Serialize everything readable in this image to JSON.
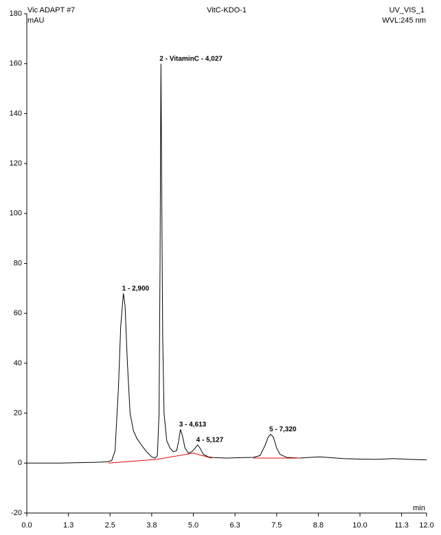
{
  "chart_data": {
    "type": "line",
    "header_left": "Vic  ADAPT #7",
    "title": "VitC-KDO-1",
    "header_right": "UV_VIS_1",
    "ylabel": "mAU",
    "subtitle": "WVL:245 nm",
    "xlabel": "min",
    "xlim": [
      0,
      12
    ],
    "ylim": [
      -20,
      180
    ],
    "xticks": [
      {
        "value": 0,
        "label": "0.0"
      },
      {
        "value": 1.25,
        "label": "1.3"
      },
      {
        "value": 2.5,
        "label": "2.5"
      },
      {
        "value": 3.75,
        "label": "3.8"
      },
      {
        "value": 5,
        "label": "5.0"
      },
      {
        "value": 6.25,
        "label": "6.3"
      },
      {
        "value": 7.5,
        "label": "7.5"
      },
      {
        "value": 8.75,
        "label": "8.8"
      },
      {
        "value": 10,
        "label": "10.0"
      },
      {
        "value": 11.25,
        "label": "11.3"
      },
      {
        "value": 12,
        "label": "12.0"
      }
    ],
    "yticks": [
      -20,
      0,
      20,
      40,
      60,
      80,
      100,
      120,
      140,
      160,
      180
    ],
    "series": [
      {
        "color": "#000000",
        "x": [
          0,
          1.0,
          2.0,
          2.4,
          2.55,
          2.65,
          2.75,
          2.82,
          2.9,
          2.95,
          3.02,
          3.1,
          3.2,
          3.3,
          3.45,
          3.6,
          3.75,
          3.85,
          3.92,
          3.97,
          4.0,
          4.027,
          4.05,
          4.08,
          4.12,
          4.2,
          4.3,
          4.4,
          4.5,
          4.56,
          4.613,
          4.67,
          4.75,
          4.85,
          4.95,
          5.05,
          5.127,
          5.2,
          5.3,
          5.45,
          5.6,
          6.0,
          6.5,
          6.8,
          7.0,
          7.15,
          7.25,
          7.32,
          7.4,
          7.5,
          7.6,
          7.8,
          8.2,
          8.5,
          8.8,
          9.5,
          10.0,
          10.5,
          11.0,
          11.5,
          12.0
        ],
        "values": [
          0,
          0,
          0.3,
          0.5,
          1,
          5,
          30,
          55,
          68,
          63,
          40,
          20,
          13,
          10,
          7,
          4.5,
          2.5,
          2,
          3,
          20,
          80,
          160,
          110,
          50,
          20,
          9,
          6,
          4.5,
          5,
          9,
          13.5,
          11,
          6,
          4,
          4.5,
          6,
          7.3,
          6,
          3.5,
          2.5,
          2.2,
          2,
          2.2,
          2.3,
          3,
          7,
          10.5,
          11.5,
          10.5,
          6,
          3.5,
          2.3,
          2,
          2.3,
          2.5,
          1.8,
          1.6,
          1.5,
          1.8,
          1.5,
          1.3
        ]
      },
      {
        "color": "#e00000",
        "x": [
          2.45,
          3.9,
          5.0,
          5.55,
          6.0,
          6.8,
          8.2
        ],
        "values": [
          0,
          1.5,
          4,
          2,
          null,
          2,
          2
        ]
      }
    ],
    "annotations": [
      {
        "text": "1 - 2,900",
        "x": 2.9,
        "y": 68
      },
      {
        "text": "2 - VitaminC - 4,027",
        "x": 4.027,
        "y": 160
      },
      {
        "text": "3 - 4,613",
        "x": 4.613,
        "y": 13.5
      },
      {
        "text": "4 - 5,127",
        "x": 5.127,
        "y": 7.3
      },
      {
        "text": "5 - 7,320",
        "x": 7.32,
        "y": 11.5
      }
    ]
  }
}
